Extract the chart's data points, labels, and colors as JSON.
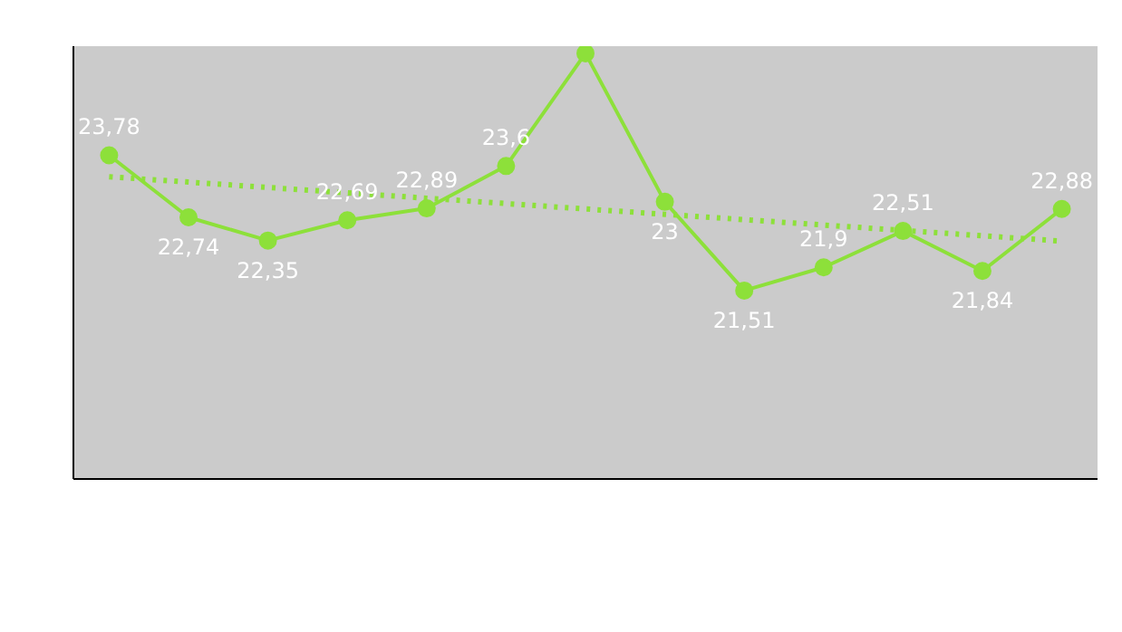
{
  "chart_data": {
    "type": "line",
    "categories": [
      null,
      null,
      null,
      null,
      null,
      null,
      null,
      null,
      null,
      null,
      null,
      null,
      null
    ],
    "series": [
      {
        "color": "#8de03a",
        "values": [
          23.78,
          22.74,
          22.35,
          22.69,
          22.89,
          23.6,
          25.49,
          23,
          21.51,
          21.9,
          22.51,
          21.84,
          22.88
        ],
        "value_labels": [
          "23,78",
          "22,74",
          "22,35",
          "22,69",
          "22,89",
          "23,6",
          null,
          "23",
          "21,51",
          "21,9",
          "22,51",
          "21,84",
          "22,88"
        ],
        "marker": "circle",
        "line_style": "solid"
      },
      {
        "type": "line",
        "color": "#8de03a",
        "values": [
          23.42,
          23.33,
          23.24,
          23.15,
          23.06,
          22.97,
          22.88,
          22.79,
          22.7,
          22.61,
          22.52,
          22.43,
          22.34
        ],
        "marker": "none",
        "line_style": "dotted"
      }
    ],
    "ylim": [
      18.35,
      25.61
    ],
    "tick_labels": false,
    "grid": false
  }
}
